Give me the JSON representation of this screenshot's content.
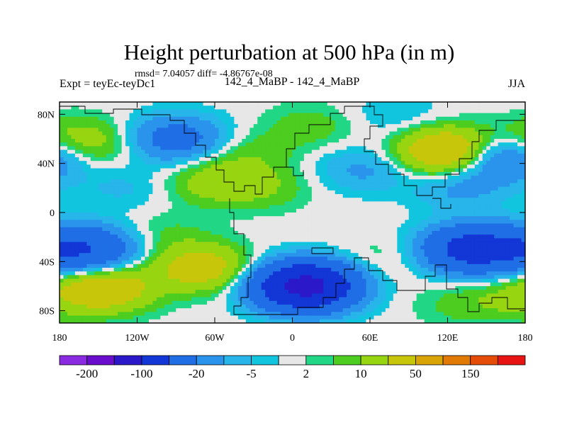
{
  "chart_data": {
    "type": "heatmap",
    "title": "Height perturbation at 500 hPa (in m)",
    "stats_text": "rmsd= 7.04057 diff= -4.86767e-08",
    "left_label": "Expt = teyEc-teyDc1",
    "center_label": "142_4_MaBP - 142_4_MaBP",
    "right_label": "JJA",
    "x_axis": {
      "range": [
        -180,
        180
      ],
      "ticks": [
        -180,
        -120,
        -60,
        0,
        60,
        120,
        180
      ],
      "tick_labels": [
        "180",
        "120W",
        "60W",
        "0",
        "60E",
        "120E",
        "180"
      ]
    },
    "y_axis": {
      "range": [
        -90,
        90
      ],
      "ticks": [
        80,
        40,
        0,
        -40,
        -80
      ],
      "tick_labels": [
        "80N",
        "40N",
        "0",
        "40S",
        "80S"
      ]
    },
    "colorbar": {
      "levels": [
        -200,
        -150,
        -100,
        -50,
        -20,
        -10,
        -5,
        -2,
        2,
        5,
        10,
        20,
        50,
        100,
        150,
        200
      ],
      "colors": [
        "#8a2be2",
        "#6a0dcd",
        "#2b18c9",
        "#1336d6",
        "#1f6ee6",
        "#2a94ec",
        "#27b5ea",
        "#12c5df",
        "#e7e7e7",
        "#21d786",
        "#4ccd1f",
        "#98d511",
        "#c7c60b",
        "#d8a406",
        "#e07a04",
        "#e44c08",
        "#e81414"
      ],
      "labels": [
        {
          "value": -200,
          "text": "-200"
        },
        {
          "value": -100,
          "text": "-100"
        },
        {
          "value": -20,
          "text": "-20"
        },
        {
          "value": -5,
          "text": "-5"
        },
        {
          "value": 2,
          "text": "2"
        },
        {
          "value": 10,
          "text": "10"
        },
        {
          "value": 50,
          "text": "50"
        },
        {
          "value": 150,
          "text": "150"
        }
      ]
    },
    "anomaly_centers": [
      {
        "lon": -170,
        "lat": 60,
        "value": 12
      },
      {
        "lon": -150,
        "lat": 55,
        "value": 8
      },
      {
        "lon": -90,
        "lat": 60,
        "value": -30
      },
      {
        "lon": -35,
        "lat": 48,
        "value": 8
      },
      {
        "lon": -60,
        "lat": 25,
        "value": 15
      },
      {
        "lon": -20,
        "lat": 20,
        "value": 8
      },
      {
        "lon": 15,
        "lat": 70,
        "value": 8
      },
      {
        "lon": 55,
        "lat": 35,
        "value": -12
      },
      {
        "lon": 80,
        "lat": 78,
        "value": -6
      },
      {
        "lon": 120,
        "lat": 50,
        "value": 45
      },
      {
        "lon": 160,
        "lat": 45,
        "value": -30
      },
      {
        "lon": -130,
        "lat": 20,
        "value": -6
      },
      {
        "lon": 130,
        "lat": 20,
        "value": -12
      },
      {
        "lon": -160,
        "lat": -30,
        "value": -50
      },
      {
        "lon": -100,
        "lat": -18,
        "value": 6
      },
      {
        "lon": -70,
        "lat": -45,
        "value": 30
      },
      {
        "lon": -145,
        "lat": -62,
        "value": 35
      },
      {
        "lon": 10,
        "lat": -60,
        "value": -120
      },
      {
        "lon": 70,
        "lat": -38,
        "value": 5
      },
      {
        "lon": 140,
        "lat": -30,
        "value": -70
      },
      {
        "lon": 130,
        "lat": -75,
        "value": 6
      },
      {
        "lon": 170,
        "lat": -70,
        "value": 8
      }
    ]
  }
}
